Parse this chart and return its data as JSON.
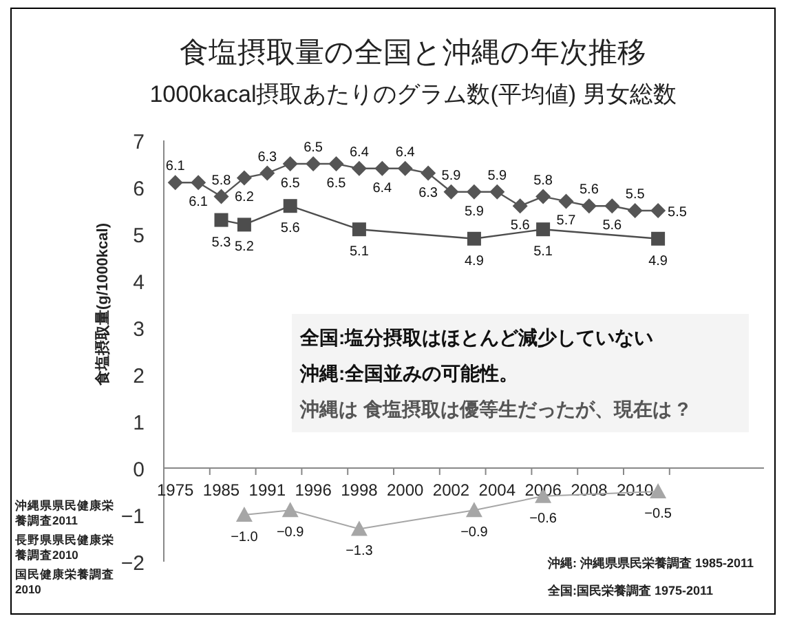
{
  "chart_data": {
    "type": "line",
    "title": "食塩摂取量の全国と沖縄の年次推移",
    "subtitle": "1000kacal摂取あたりのグラム数(平均値)  男女総数",
    "ylabel": "食塩摂取量(g/1000kcal)",
    "categories": [
      "1975",
      null,
      "1985",
      null,
      "1991",
      null,
      "1996",
      null,
      "1998",
      null,
      "2000",
      null,
      "2002",
      null,
      "2004",
      null,
      "2006",
      null,
      "2008",
      null,
      "2010",
      null
    ],
    "series": [
      {
        "color": "#555555",
        "marker": "diamond",
        "values": [
          6.1,
          6.1,
          5.8,
          6.2,
          6.3,
          6.5,
          6.5,
          6.5,
          6.4,
          6.4,
          6.4,
          6.3,
          5.9,
          5.9,
          5.9,
          5.6,
          5.8,
          5.7,
          5.6,
          5.6,
          5.5,
          5.5
        ]
      },
      {
        "color": "#4d4d4d",
        "marker": "square",
        "values": [
          null,
          null,
          5.3,
          5.2,
          null,
          5.6,
          null,
          null,
          5.1,
          null,
          null,
          null,
          null,
          4.9,
          null,
          null,
          5.1,
          null,
          null,
          null,
          null,
          4.9
        ]
      },
      {
        "color": "#a6a6a6",
        "marker": "triangle",
        "values": [
          null,
          null,
          null,
          -1.0,
          null,
          -0.9,
          null,
          null,
          -1.3,
          null,
          null,
          null,
          null,
          -0.9,
          null,
          null,
          -0.6,
          null,
          null,
          null,
          null,
          -0.5
        ],
        "value_labels": [
          null,
          null,
          null,
          "−1.0",
          null,
          "−0.9",
          null,
          null,
          "−1.3",
          null,
          null,
          null,
          null,
          "−0.9",
          null,
          null,
          "−0.6",
          null,
          null,
          null,
          null,
          "−0.5"
        ]
      }
    ],
    "data_labels": true,
    "ylim": [
      -2,
      7
    ],
    "yticks": [
      -2,
      -1,
      0,
      1,
      2,
      3,
      4,
      5,
      6,
      7
    ],
    "grid": false,
    "annotations": [
      "全国:塩分摂取はほとんど減少していない",
      "沖縄:全国並みの可能性。",
      "沖縄は 食塩摂取は優等生だったが、現在は ?",
      "沖縄県県民健康栄養調査2011",
      "長野県県民健康栄養調査2010",
      "国民健康栄養調査2010",
      "沖縄:  沖縄県県民栄養調査   1985-2011",
      "全国:国民栄養調査   1975-2011"
    ]
  }
}
